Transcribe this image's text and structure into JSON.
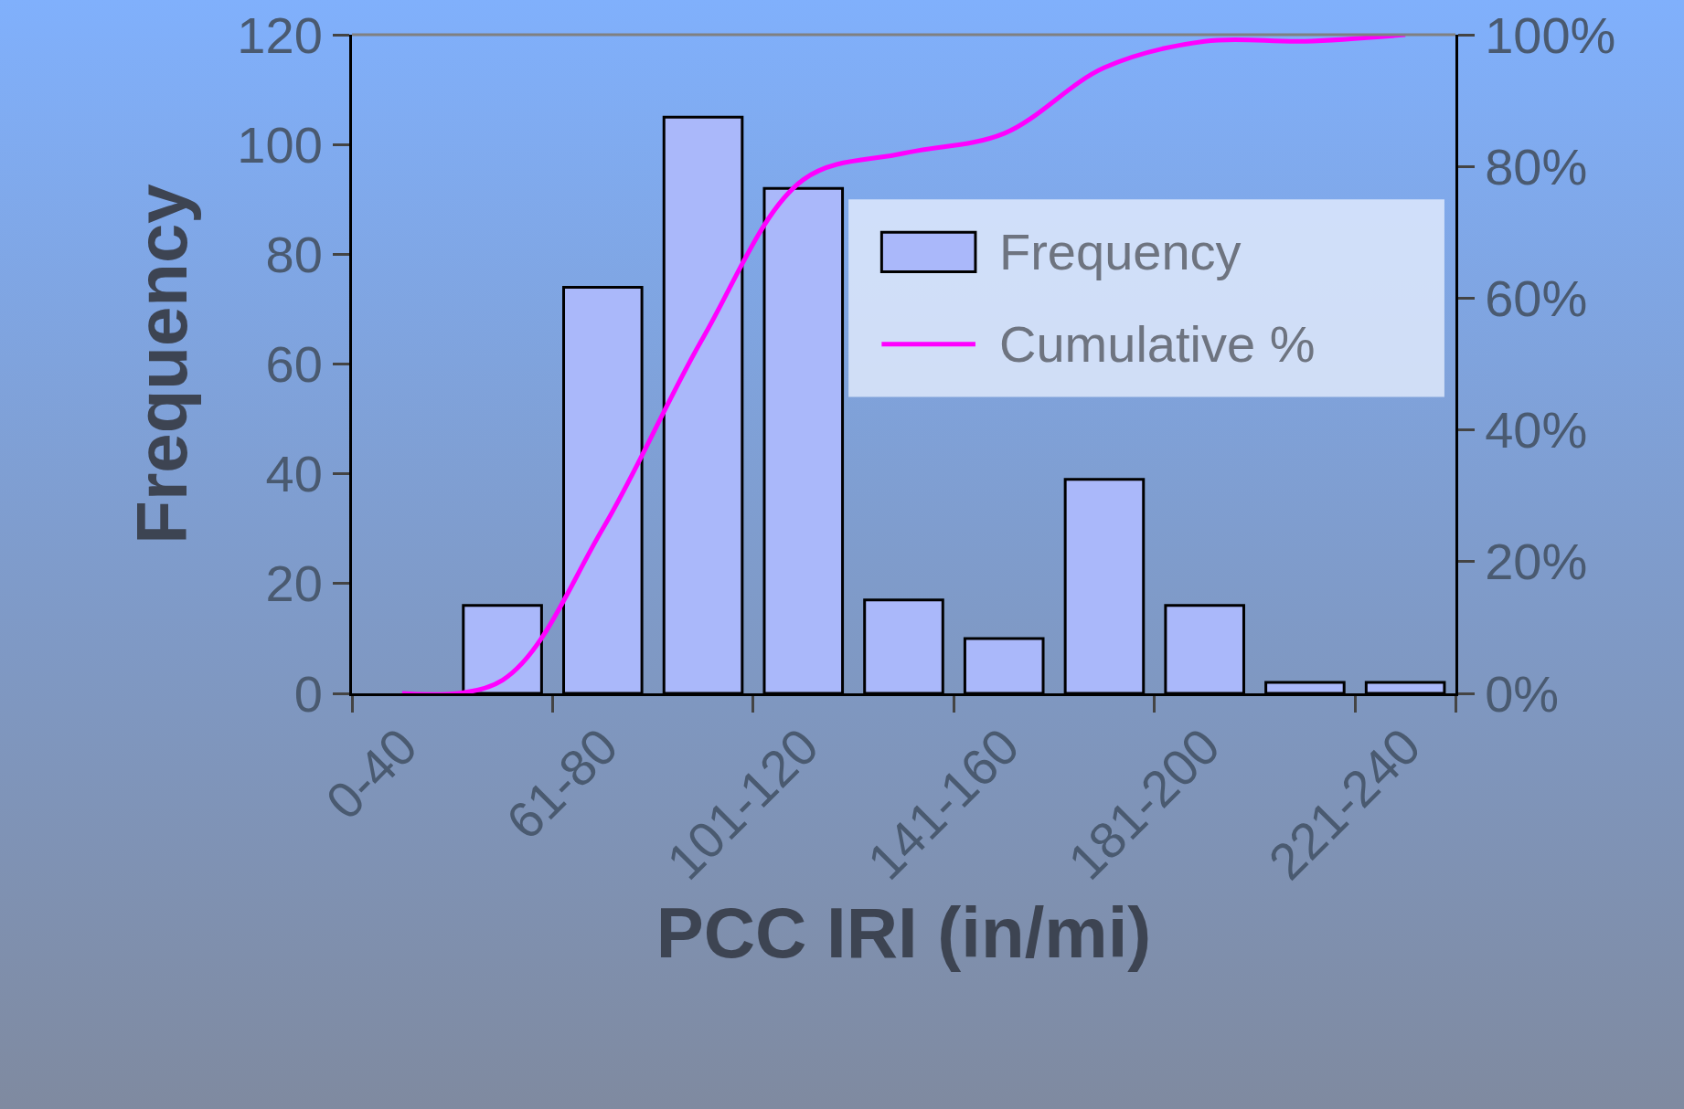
{
  "chart_data": {
    "type": "bar",
    "xlabel": "PCC IRI (in/mi)",
    "ylabel": "Frequency",
    "categories": [
      "0-40",
      null,
      "61-80",
      null,
      "101-120",
      null,
      "141-160",
      null,
      "181-200",
      null,
      "221-240"
    ],
    "series": [
      {
        "name": "Frequency",
        "color": "#aab8fa",
        "values": [
          0,
          16,
          74,
          105,
          92,
          17,
          10,
          39,
          16,
          2,
          2
        ]
      },
      {
        "name": "Cumulative %",
        "type": "line",
        "axis": "y2",
        "color": "#ff00ff",
        "values": [
          0,
          2,
          25,
          54,
          78,
          82,
          85,
          95,
          99,
          99,
          100
        ]
      }
    ],
    "ylim": [
      0,
      120
    ],
    "yticks": [
      0,
      20,
      40,
      60,
      80,
      100,
      120
    ],
    "y2lim": [
      0,
      100
    ],
    "y2ticks": [
      {
        "value": 0,
        "label": "0%"
      },
      {
        "value": 20,
        "label": "20%"
      },
      {
        "value": 40,
        "label": "40%"
      },
      {
        "value": 60,
        "label": "60%"
      },
      {
        "value": 80,
        "label": "80%"
      },
      {
        "value": 100,
        "label": "100%"
      }
    ],
    "grid": false,
    "legend": "right",
    "marker": "none"
  }
}
